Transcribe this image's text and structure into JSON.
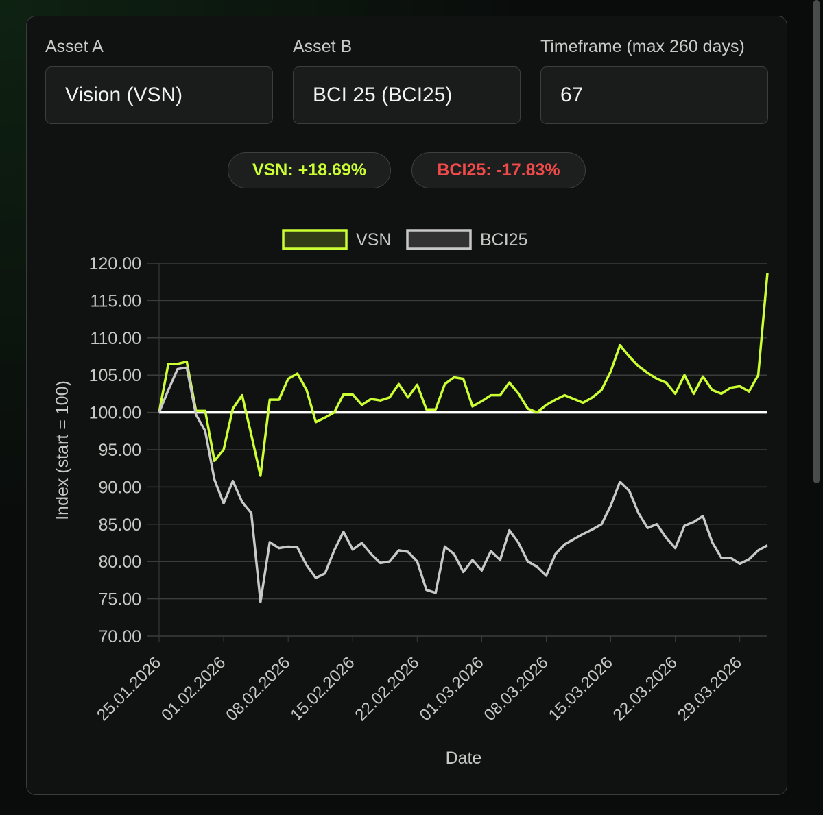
{
  "form": {
    "asset_a": {
      "label": "Asset A",
      "value": "Vision (VSN)"
    },
    "asset_b": {
      "label": "Asset B",
      "value": "BCI 25 (BCI25)"
    },
    "timeframe": {
      "label": "Timeframe (max 260 days)",
      "value": "67"
    }
  },
  "summary": {
    "a": "VSN: +18.69%",
    "b": "BCI25: -17.83%"
  },
  "chart_data": {
    "type": "line",
    "xlabel": "Date",
    "ylabel": "Index (start = 100)",
    "categories": [
      "25.01.2026",
      null,
      null,
      null,
      null,
      null,
      null,
      "01.02.2026",
      null,
      null,
      null,
      null,
      null,
      null,
      "08.02.2026",
      null,
      null,
      null,
      null,
      null,
      null,
      "15.02.2026",
      null,
      null,
      null,
      null,
      null,
      null,
      "22.02.2026",
      null,
      null,
      null,
      null,
      null,
      null,
      "01.03.2026",
      null,
      null,
      null,
      null,
      null,
      null,
      "08.03.2026",
      null,
      null,
      null,
      null,
      null,
      null,
      "15.03.2026",
      null,
      null,
      null,
      null,
      null,
      null,
      "22.03.2026",
      null,
      null,
      null,
      null,
      null,
      null,
      "29.03.2026",
      null,
      null,
      null
    ],
    "series": [
      {
        "name": "VSN",
        "color": "#ccff33",
        "values": [
          100,
          106.5,
          106.5,
          106.8,
          100.2,
          100.2,
          93.5,
          95,
          100.5,
          102.3,
          97,
          91.5,
          101.7,
          101.7,
          104.5,
          105.2,
          103,
          98.7,
          99.3,
          100,
          102.4,
          102.4,
          101,
          101.8,
          101.6,
          102,
          103.8,
          102,
          103.7,
          100.4,
          100.4,
          103.8,
          104.7,
          104.5,
          100.8,
          101.5,
          102.3,
          102.3,
          104,
          102.5,
          100.5,
          100,
          101,
          101.7,
          102.3,
          101.8,
          101.3,
          102,
          103,
          105.5,
          109,
          107.5,
          106.2,
          105.3,
          104.5,
          104,
          102.5,
          105,
          102.5,
          104.8,
          103,
          102.5,
          103.3,
          103.5,
          102.8,
          105,
          118.69
        ]
      },
      {
        "name": "BCI25",
        "color": "#c8c8c8",
        "values": [
          100,
          103,
          105.8,
          106,
          99.7,
          97.5,
          91,
          87.8,
          90.8,
          88,
          86.5,
          74.6,
          82.6,
          81.8,
          82,
          81.9,
          79.5,
          77.8,
          78.4,
          81.5,
          84,
          81.6,
          82.5,
          81,
          79.8,
          80,
          81.5,
          81.3,
          80,
          76.2,
          75.8,
          82,
          81,
          78.6,
          80.2,
          78.8,
          81.4,
          80.2,
          84.2,
          82.5,
          80,
          79.3,
          78.1,
          81,
          82.3,
          83,
          83.7,
          84.3,
          85,
          87.5,
          90.7,
          89.5,
          86.5,
          84.5,
          85,
          83.2,
          81.8,
          84.8,
          85.3,
          86.1,
          82.6,
          80.5,
          80.5,
          79.7,
          80.3,
          81.5,
          82.17
        ]
      }
    ],
    "baseline": 100,
    "baseline_color": "#ffffff",
    "ylim": [
      70,
      120
    ],
    "yticks": [
      {
        "value": 70,
        "label": "70.00"
      },
      {
        "value": 75,
        "label": "75.00"
      },
      {
        "value": 80,
        "label": "80.00"
      },
      {
        "value": 85,
        "label": "85.00"
      },
      {
        "value": 90,
        "label": "90.00"
      },
      {
        "value": 95,
        "label": "95.00"
      },
      {
        "value": 100,
        "label": "100.00"
      },
      {
        "value": 105,
        "label": "105.00"
      },
      {
        "value": 110,
        "label": "110.00"
      },
      {
        "value": 115,
        "label": "115.00"
      },
      {
        "value": 120,
        "label": "120.00"
      }
    ],
    "grid": true,
    "legend": "top"
  }
}
